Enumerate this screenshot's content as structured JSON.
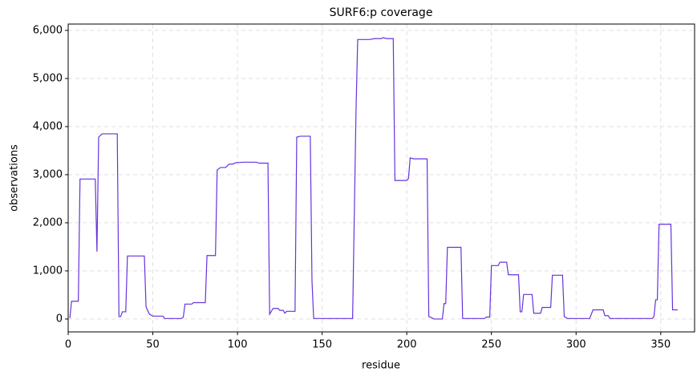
{
  "chart_data": {
    "type": "line",
    "title": "SURF6:p coverage",
    "x_label": "residue",
    "y_label": "observations",
    "color": "#6633dd",
    "grid": true,
    "xlim": [
      0,
      370
    ],
    "ylim": [
      -268,
      6132
    ],
    "xticks": [
      0,
      50,
      100,
      150,
      200,
      250,
      300,
      350
    ],
    "yticks": [
      0,
      {
        "value": 1000,
        "label": "1,000"
      },
      {
        "value": 2000,
        "label": "2,000"
      },
      {
        "value": 3000,
        "label": "3,000"
      },
      {
        "value": 4000,
        "label": "4,000"
      },
      {
        "value": 5000,
        "label": "5,000"
      },
      {
        "value": 6000,
        "label": "6,000"
      }
    ],
    "x": [
      1,
      2,
      6,
      7,
      16,
      17,
      18,
      20,
      29,
      30,
      31,
      32,
      34,
      35,
      45,
      46,
      48,
      50,
      56,
      57,
      67,
      68,
      69,
      73,
      74,
      81,
      82,
      87,
      88,
      90,
      93,
      95,
      97,
      99,
      104,
      111,
      113,
      118,
      119,
      121,
      124,
      125,
      127,
      128,
      129,
      134,
      135,
      137,
      143,
      144,
      145,
      168,
      170,
      171,
      178,
      181,
      185,
      186,
      188,
      192,
      193,
      200,
      201,
      202,
      204,
      212,
      213,
      214,
      216,
      221,
      222,
      223,
      224,
      232,
      233,
      246,
      247,
      249,
      250,
      254,
      255,
      259,
      260,
      266,
      267,
      268,
      269,
      274,
      275,
      279,
      280,
      285,
      286,
      292,
      293,
      295,
      308,
      310,
      316,
      317,
      319,
      320,
      345,
      346,
      347,
      348,
      349,
      356,
      357,
      360
    ],
    "values": [
      20,
      370,
      370,
      2910,
      2910,
      1400,
      3780,
      3850,
      3850,
      50,
      50,
      150,
      150,
      1310,
      1310,
      250,
      100,
      60,
      60,
      10,
      10,
      40,
      310,
      310,
      340,
      340,
      1320,
      1320,
      3100,
      3150,
      3150,
      3220,
      3220,
      3250,
      3260,
      3260,
      3240,
      3240,
      100,
      220,
      220,
      180,
      180,
      120,
      160,
      160,
      3780,
      3800,
      3800,
      800,
      10,
      10,
      4300,
      5810,
      5810,
      5830,
      5830,
      5850,
      5830,
      5830,
      2880,
      2880,
      2920,
      3350,
      3330,
      3330,
      50,
      40,
      0,
      0,
      320,
      320,
      1490,
      1490,
      10,
      10,
      40,
      40,
      1110,
      1110,
      1180,
      1180,
      920,
      920,
      150,
      150,
      510,
      510,
      120,
      120,
      240,
      240,
      910,
      910,
      50,
      10,
      10,
      190,
      190,
      70,
      70,
      10,
      10,
      50,
      400,
      400,
      1970,
      1970,
      190,
      190
    ]
  }
}
